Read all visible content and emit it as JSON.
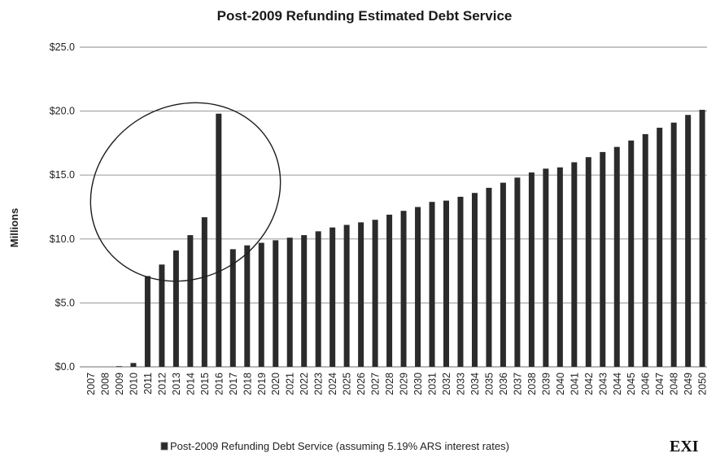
{
  "chart_data": {
    "type": "bar",
    "title": "Post-2009 Refunding Estimated Debt Service",
    "ylabel": "Millions",
    "xlabel": "",
    "ylim": [
      0,
      25
    ],
    "yticks": [
      "$0.0",
      "$5.0",
      "$10.0",
      "$15.0",
      "$20.0",
      "$25.0"
    ],
    "grid": true,
    "legend_position": "bottom",
    "categories": [
      "2007",
      "2008",
      "2009",
      "2010",
      "2011",
      "2012",
      "2013",
      "2014",
      "2015",
      "2016",
      "2017",
      "2018",
      "2019",
      "2020",
      "2021",
      "2022",
      "2023",
      "2024",
      "2025",
      "2026",
      "2027",
      "2028",
      "2029",
      "2030",
      "2031",
      "2032",
      "2033",
      "2034",
      "2035",
      "2036",
      "2037",
      "2038",
      "2039",
      "2040",
      "2041",
      "2042",
      "2043",
      "2044",
      "2045",
      "2046",
      "2047",
      "2048",
      "2049",
      "2050"
    ],
    "series": [
      {
        "name": "Post-2009 Refunding Debt Service (assuming 5.19% ARS interest rates)",
        "values": [
          0,
          0,
          0.05,
          0.3,
          7.1,
          8.0,
          9.1,
          10.3,
          11.7,
          19.8,
          9.2,
          9.5,
          9.7,
          9.9,
          10.1,
          10.3,
          10.6,
          10.9,
          11.1,
          11.3,
          11.5,
          11.9,
          12.2,
          12.5,
          12.9,
          13.0,
          13.3,
          13.6,
          14.0,
          14.4,
          14.8,
          15.2,
          15.5,
          15.6,
          16.0,
          16.4,
          16.8,
          17.2,
          17.7,
          18.2,
          18.7,
          19.1,
          19.7,
          20.1
        ]
      }
    ],
    "annotation": "ellipse around 2011–2016 bars",
    "colors": {
      "bar": "#2b2b2b",
      "grid": "#8a8a8a",
      "ellipse": "#1e1e1e"
    }
  },
  "stamp_text": "EXI"
}
